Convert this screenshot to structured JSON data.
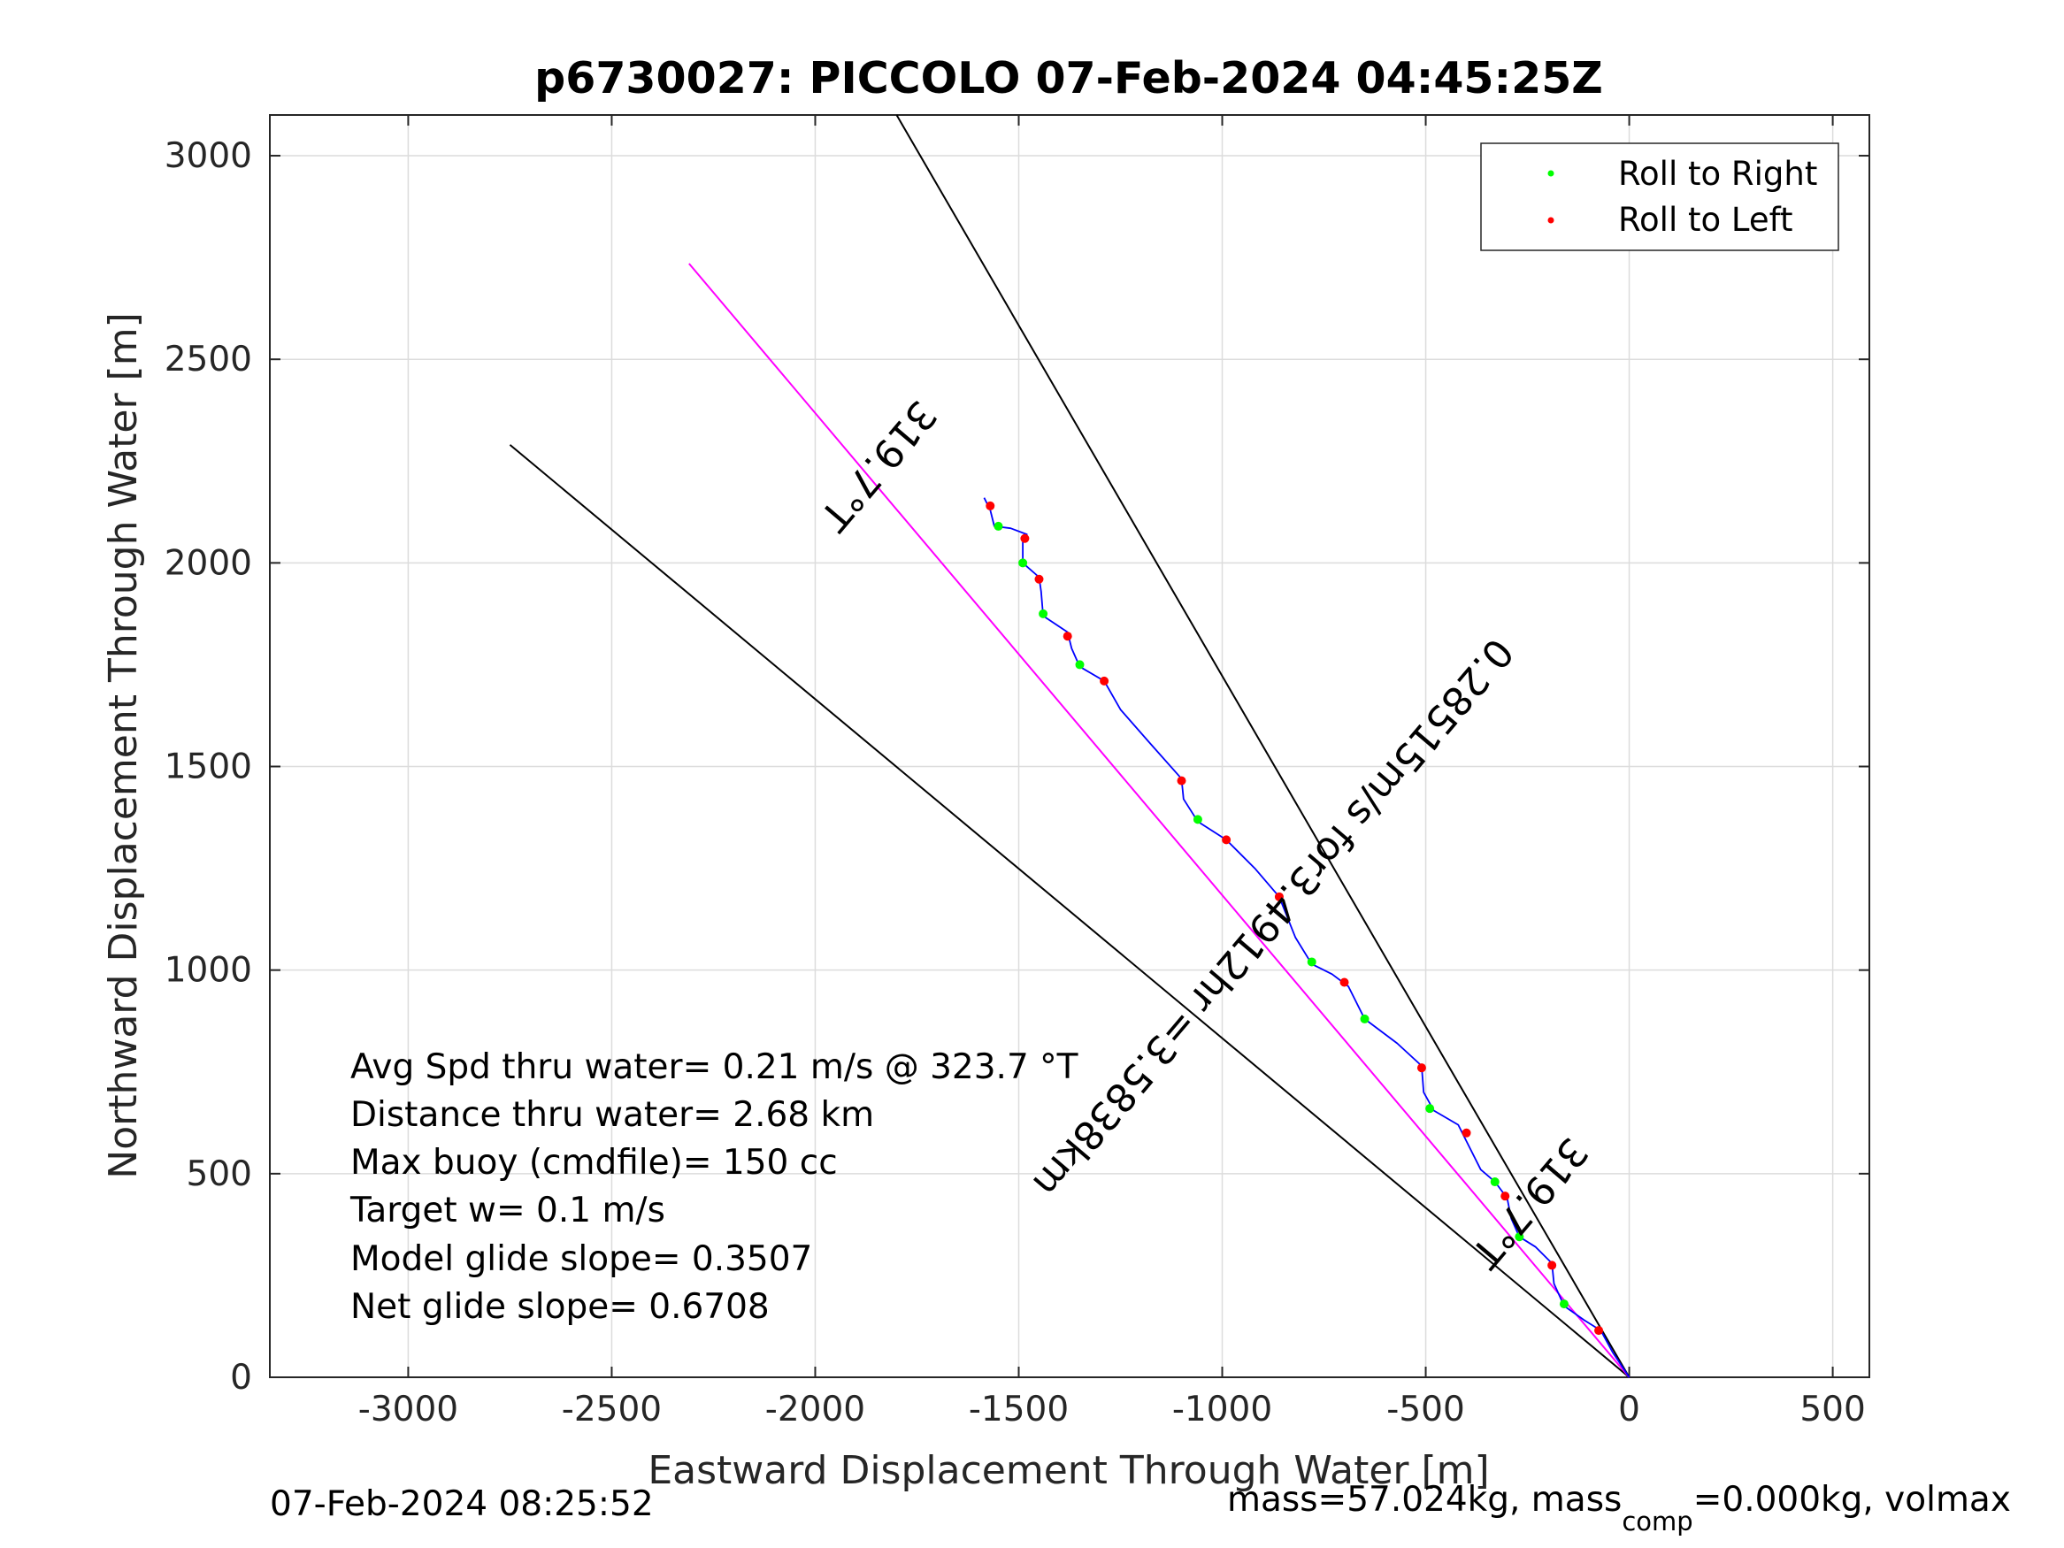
{
  "chart_data": {
    "type": "line",
    "title": "p6730027: PICCOLO 07-Feb-2024 04:45:25Z",
    "xlabel": "Eastward Displacement Through Water [m]",
    "ylabel": "Northward Displacement Through Water [m]",
    "xlim": [
      -3340,
      590
    ],
    "ylim": [
      0,
      3100
    ],
    "xticks": [
      -3000,
      -2500,
      -2000,
      -1500,
      -1000,
      -500,
      0,
      500
    ],
    "yticks": [
      0,
      500,
      1000,
      1500,
      2000,
      2500,
      3000
    ],
    "grid": true,
    "legend_position": "top-right",
    "legend": [
      {
        "label": "Roll to Right",
        "color": "#00ff00"
      },
      {
        "label": "Roll to Left",
        "color": "#ff0000"
      }
    ],
    "colors": {
      "track": "#0000ff",
      "heading_line": "#ff00ff",
      "bounds": "#000000",
      "grid": "#dcdcdc"
    },
    "reference_lines": [
      {
        "from": [
          0,
          0
        ],
        "to": [
          -1800,
          3100
        ]
      },
      {
        "from": [
          0,
          0
        ],
        "to": [
          -2750,
          2290
        ]
      }
    ],
    "heading_line": {
      "from": [
        0,
        0
      ],
      "to": [
        -2310,
        2735
      ]
    },
    "track": [
      [
        0,
        0
      ],
      [
        -40,
        60
      ],
      [
        -70,
        115
      ],
      [
        -110,
        140
      ],
      [
        -160,
        175
      ],
      [
        -185,
        230
      ],
      [
        -190,
        280
      ],
      [
        -230,
        320
      ],
      [
        -270,
        345
      ],
      [
        -290,
        390
      ],
      [
        -300,
        440
      ],
      [
        -330,
        480
      ],
      [
        -365,
        510
      ],
      [
        -400,
        580
      ],
      [
        -420,
        620
      ],
      [
        -480,
        655
      ],
      [
        -505,
        700
      ],
      [
        -510,
        765
      ],
      [
        -570,
        820
      ],
      [
        -650,
        880
      ],
      [
        -690,
        960
      ],
      [
        -730,
        990
      ],
      [
        -780,
        1015
      ],
      [
        -820,
        1080
      ],
      [
        -860,
        1180
      ],
      [
        -920,
        1250
      ],
      [
        -990,
        1320
      ],
      [
        -1060,
        1365
      ],
      [
        -1095,
        1420
      ],
      [
        -1100,
        1470
      ],
      [
        -1180,
        1560
      ],
      [
        -1250,
        1640
      ],
      [
        -1290,
        1710
      ],
      [
        -1350,
        1745
      ],
      [
        -1370,
        1790
      ],
      [
        -1380,
        1830
      ],
      [
        -1440,
        1870
      ],
      [
        -1445,
        1930
      ],
      [
        -1450,
        1965
      ],
      [
        -1490,
        2000
      ],
      [
        -1490,
        2050
      ],
      [
        -1480,
        2070
      ],
      [
        -1520,
        2085
      ],
      [
        -1560,
        2090
      ],
      [
        -1570,
        2130
      ],
      [
        -1585,
        2160
      ]
    ],
    "roll_right": [
      [
        -160,
        180
      ],
      [
        -270,
        345
      ],
      [
        -330,
        480
      ],
      [
        -490,
        660
      ],
      [
        -650,
        880
      ],
      [
        -780,
        1020
      ],
      [
        -1060,
        1370
      ],
      [
        -1350,
        1750
      ],
      [
        -1440,
        1875
      ],
      [
        -1490,
        2000
      ],
      [
        -1550,
        2090
      ]
    ],
    "roll_left": [
      [
        -75,
        115
      ],
      [
        -190,
        275
      ],
      [
        -305,
        445
      ],
      [
        -400,
        600
      ],
      [
        -510,
        760
      ],
      [
        -700,
        970
      ],
      [
        -860,
        1180
      ],
      [
        -990,
        1320
      ],
      [
        -1100,
        1465
      ],
      [
        -1290,
        1710
      ],
      [
        -1380,
        1820
      ],
      [
        -1450,
        1960
      ],
      [
        -1485,
        2060
      ],
      [
        -1570,
        2140
      ]
    ],
    "annotations": [
      {
        "text": "319.7°T",
        "at": [
          -1870,
          2260
        ],
        "angle": -130.3
      },
      {
        "text": "0.28515m/s for3.4912hr =3.5838km",
        "at": [
          -900,
          1150
        ],
        "angle": -130.3
      },
      {
        "text": "319.7°T",
        "at": [
          -270,
          450
        ],
        "angle": -130.3
      }
    ]
  },
  "stats": [
    "Avg Spd thru water=  0.21 m/s @ 323.7 °T",
    "Distance thru water=  2.68 km",
    "Max buoy (cmdfile)= 150 cc",
    "Target w= 0.1 m/s",
    "Model glide slope= 0.3507",
    "Net glide slope= 0.6708"
  ],
  "footer": {
    "timestamp": "07-Feb-2024 08:25:52",
    "mass_prefix": "mass=57.024kg, mass",
    "mass_sub": "comp",
    "mass_suffix": "=0.000kg, volmax"
  }
}
